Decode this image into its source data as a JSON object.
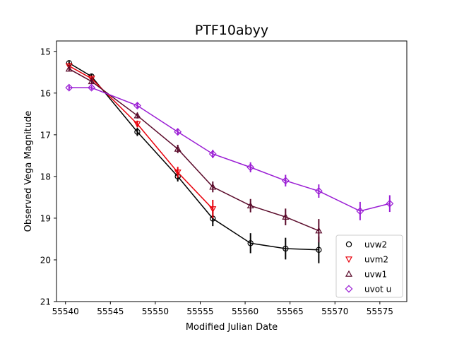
{
  "chart_data": {
    "type": "line",
    "title": "PTF10abyy",
    "xlabel": "Modified Julian Date",
    "ylabel": "Observed Vega Magnitude",
    "xlim": [
      55539,
      55578
    ],
    "ylim": [
      21,
      14.75
    ],
    "y_inverted": true,
    "grid": false,
    "legend_position": "lower-right",
    "xticks": [
      55540,
      55545,
      55550,
      55555,
      55560,
      55565,
      55570,
      55575
    ],
    "yticks": [
      15,
      16,
      17,
      18,
      19,
      20,
      21
    ],
    "xtick_labels": [
      "55540",
      "55545",
      "55550",
      "55555",
      "55560",
      "55565",
      "55570",
      "55575"
    ],
    "ytick_labels": [
      "15",
      "16",
      "17",
      "18",
      "19",
      "20",
      "21"
    ],
    "series": [
      {
        "name": "uvw2",
        "color": "#000000",
        "marker": "circle",
        "x": [
          55540.4,
          55542.9,
          55548.0,
          55552.5,
          55556.4,
          55560.6,
          55564.5,
          55568.2
        ],
        "y": [
          15.28,
          15.6,
          16.93,
          18.0,
          19.01,
          19.6,
          19.73,
          19.76
        ],
        "err": [
          0.05,
          0.06,
          0.1,
          0.12,
          0.18,
          0.24,
          0.26,
          0.32
        ]
      },
      {
        "name": "uvm2",
        "color": "#e8000b",
        "marker": "triangle-down",
        "x": [
          55540.4,
          55542.9,
          55548.0,
          55552.5,
          55556.4
        ],
        "y": [
          15.35,
          15.65,
          16.74,
          17.9,
          18.78
        ],
        "err": [
          0.05,
          0.06,
          0.08,
          0.13,
          0.22
        ]
      },
      {
        "name": "uvw1",
        "color": "#5a0a2a",
        "marker": "triangle-up",
        "x": [
          55540.4,
          55542.9,
          55548.0,
          55552.5,
          55556.4,
          55560.6,
          55564.5,
          55568.2
        ],
        "y": [
          15.42,
          15.72,
          16.54,
          17.34,
          18.25,
          18.7,
          18.97,
          19.3
        ],
        "err": [
          0.05,
          0.06,
          0.07,
          0.1,
          0.13,
          0.16,
          0.2,
          0.28
        ]
      },
      {
        "name": "uvot u",
        "color": "#9a1dd4",
        "marker": "diamond",
        "x": [
          55540.4,
          55542.9,
          55548.0,
          55552.5,
          55556.4,
          55560.6,
          55564.5,
          55568.2,
          55572.8,
          55576.1
        ],
        "y": [
          15.87,
          15.87,
          16.3,
          16.93,
          17.46,
          17.78,
          18.1,
          18.35,
          18.83,
          18.65
        ],
        "err": [
          0.05,
          0.05,
          0.06,
          0.08,
          0.1,
          0.12,
          0.14,
          0.16,
          0.22,
          0.2
        ]
      }
    ]
  }
}
